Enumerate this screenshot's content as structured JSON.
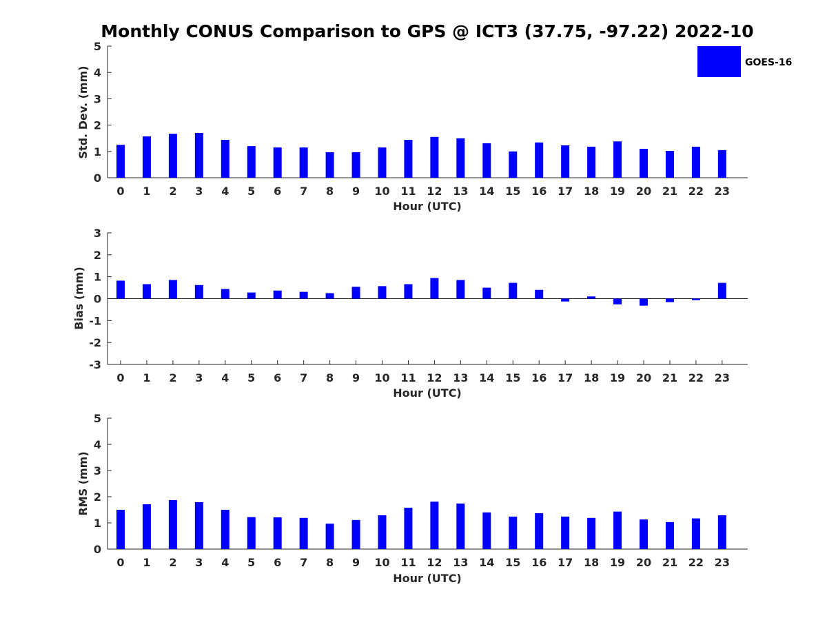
{
  "title": "Monthly CONUS Comparison to GPS @ ICT3 (37.75, -97.22) 2022-10",
  "legend": {
    "label": "GOES-16",
    "color": "#0000ff",
    "position": "top-right"
  },
  "bar_color": "#0000ff",
  "chart_data": [
    {
      "type": "bar",
      "categories": [
        "0",
        "1",
        "2",
        "3",
        "4",
        "5",
        "6",
        "7",
        "8",
        "9",
        "10",
        "11",
        "12",
        "13",
        "14",
        "15",
        "16",
        "17",
        "18",
        "19",
        "20",
        "21",
        "22",
        "23"
      ],
      "series": [
        {
          "name": "GOES-16",
          "values": [
            1.25,
            1.57,
            1.67,
            1.7,
            1.44,
            1.2,
            1.15,
            1.15,
            0.97,
            0.97,
            1.15,
            1.44,
            1.55,
            1.5,
            1.31,
            1.0,
            1.34,
            1.23,
            1.18,
            1.38,
            1.1,
            1.02,
            1.18,
            1.05
          ]
        }
      ],
      "xlabel": "Hour (UTC)",
      "ylabel": "Std. Dev. (mm)",
      "ylim": [
        0,
        5
      ],
      "yticks": [
        "0",
        "1",
        "2",
        "3",
        "4",
        "5"
      ],
      "grid": false
    },
    {
      "type": "bar",
      "categories": [
        "0",
        "1",
        "2",
        "3",
        "4",
        "5",
        "6",
        "7",
        "8",
        "9",
        "10",
        "11",
        "12",
        "13",
        "14",
        "15",
        "16",
        "17",
        "18",
        "19",
        "20",
        "21",
        "22",
        "23"
      ],
      "series": [
        {
          "name": "GOES-16",
          "values": [
            0.82,
            0.66,
            0.85,
            0.62,
            0.44,
            0.28,
            0.37,
            0.31,
            0.25,
            0.54,
            0.57,
            0.66,
            0.94,
            0.85,
            0.5,
            0.72,
            0.4,
            -0.13,
            0.1,
            -0.26,
            -0.32,
            -0.16,
            -0.07,
            0.72
          ]
        }
      ],
      "xlabel": "Hour (UTC)",
      "ylabel": "Bias (mm)",
      "ylim": [
        -3,
        3
      ],
      "yticks": [
        "-3",
        "-2",
        "-1",
        "0",
        "1",
        "2",
        "3"
      ],
      "grid": false
    },
    {
      "type": "bar",
      "categories": [
        "0",
        "1",
        "2",
        "3",
        "4",
        "5",
        "6",
        "7",
        "8",
        "9",
        "10",
        "11",
        "12",
        "13",
        "14",
        "15",
        "16",
        "17",
        "18",
        "19",
        "20",
        "21",
        "22",
        "23"
      ],
      "series": [
        {
          "name": "GOES-16",
          "values": [
            1.5,
            1.71,
            1.87,
            1.79,
            1.5,
            1.22,
            1.21,
            1.19,
            0.97,
            1.11,
            1.29,
            1.58,
            1.81,
            1.74,
            1.4,
            1.24,
            1.37,
            1.24,
            1.19,
            1.43,
            1.13,
            1.03,
            1.17,
            1.29
          ]
        }
      ],
      "xlabel": "Hour (UTC)",
      "ylabel": "RMS (mm)",
      "ylim": [
        0,
        5
      ],
      "yticks": [
        "0",
        "1",
        "2",
        "3",
        "4",
        "5"
      ],
      "grid": false
    }
  ]
}
